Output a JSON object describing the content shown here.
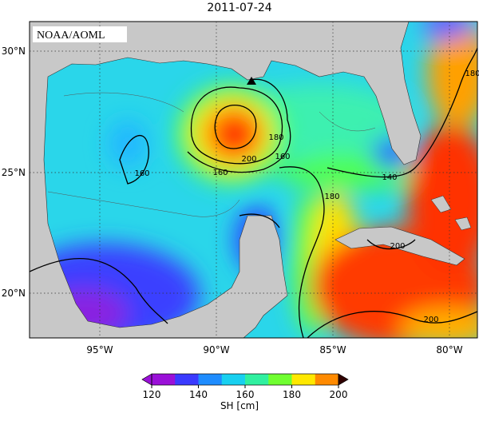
{
  "title": "2011-07-24",
  "credit": "NOAA/AOML",
  "lat_ticks": [
    "30°N",
    "25°N",
    "20°N"
  ],
  "lon_ticks": [
    "95°W",
    "90°W",
    "85°W",
    "80°W"
  ],
  "contour_labels": [
    "160",
    "200",
    "180",
    "160",
    "160",
    "180",
    "140",
    "180",
    "200",
    "200"
  ],
  "colorbar": {
    "range": [
      120,
      200
    ],
    "ticks": [
      120,
      140,
      160,
      180,
      200
    ],
    "colors": [
      "#9a10d8",
      "#3a3aff",
      "#1e8cff",
      "#18d0f0",
      "#30f0a0",
      "#70ff30",
      "#ffe800",
      "#ff8a00"
    ],
    "label": "SH [cm]"
  }
}
